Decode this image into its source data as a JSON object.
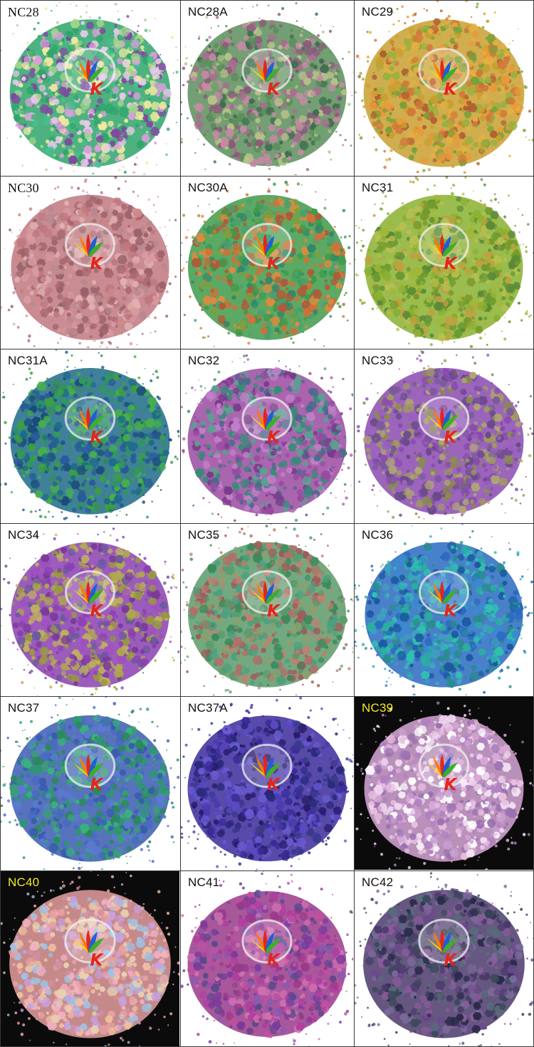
{
  "colors": {
    "grid_line": "#3a3a3a",
    "label_dark_bg": "#f4ea1d",
    "label_default": "#111111"
  },
  "logo": {
    "letter": "K",
    "colors": [
      "#ffd400",
      "#ff7a00",
      "#e3261b",
      "#1f5fd1",
      "#3fae2a"
    ]
  },
  "samples": [
    {
      "code": "NC28",
      "bg": "light",
      "palette": [
        "#2ea56a",
        "#d7a0d8",
        "#46c08a",
        "#e6c8e8",
        "#a5d48a",
        "#7f4aa0",
        "#f0e8a0"
      ]
    },
    {
      "code": "NC28A",
      "bg": "light",
      "palette": [
        "#5c8d5c",
        "#a86d8f",
        "#6fa36a",
        "#8a5a7a",
        "#c48aa4",
        "#3f6f4f",
        "#b8c28a"
      ]
    },
    {
      "code": "NC29",
      "bg": "light",
      "palette": [
        "#c8a030",
        "#d2783a",
        "#7aa03a",
        "#e6b040",
        "#b06030",
        "#9ab040",
        "#e89a3a"
      ]
    },
    {
      "code": "NC30",
      "bg": "light",
      "palette": [
        "#c07880",
        "#d89aa0",
        "#a86870",
        "#e0b0b0",
        "#b88890",
        "#cc8a8a",
        "#9a6068"
      ]
    },
    {
      "code": "NC30A",
      "bg": "light",
      "palette": [
        "#3f9a4a",
        "#d0703a",
        "#2f8a6a",
        "#e08a40",
        "#7aa040",
        "#b05a3a",
        "#4aa070"
      ]
    },
    {
      "code": "NC31",
      "bg": "light",
      "palette": [
        "#8ab030",
        "#6a9a30",
        "#a0b83a",
        "#c0a040",
        "#5a8a3a",
        "#b8c050",
        "#7a9a2a"
      ]
    },
    {
      "code": "NC31A",
      "bg": "light",
      "palette": [
        "#1f6a8a",
        "#2f9a5a",
        "#3aa040",
        "#2a5a9a",
        "#45b04a",
        "#1a4a7a",
        "#3a8a6a"
      ]
    },
    {
      "code": "NC32",
      "bg": "light",
      "palette": [
        "#9a4aa0",
        "#3a8a7a",
        "#b060b0",
        "#5aa090",
        "#7a3a8a",
        "#c080c8",
        "#4a6a8a"
      ]
    },
    {
      "code": "NC33",
      "bg": "light",
      "palette": [
        "#8a4ab0",
        "#8a8a50",
        "#9a60c0",
        "#a09a60",
        "#7a5a9a",
        "#b0a870",
        "#6a4a8a"
      ]
    },
    {
      "code": "NC34",
      "bg": "light",
      "palette": [
        "#8a40b0",
        "#9a9a40",
        "#a050c0",
        "#b0a850",
        "#6a5aa0",
        "#c0b060",
        "#7a3a9a"
      ]
    },
    {
      "code": "NC35",
      "bg": "light",
      "palette": [
        "#5a9a6a",
        "#b0706a",
        "#3a8a5a",
        "#c08070",
        "#8aa070",
        "#a05a5a",
        "#4aa080"
      ]
    },
    {
      "code": "NC36",
      "bg": "light",
      "palette": [
        "#2a6ac0",
        "#2ab0a0",
        "#3a8ad0",
        "#30c0b0",
        "#1a5aa0",
        "#40a0c0",
        "#2a8a90"
      ]
    },
    {
      "code": "NC37",
      "bg": "light",
      "palette": [
        "#3a5ab0",
        "#2a9a6a",
        "#3aa070",
        "#4a6ac0",
        "#2a8a5a",
        "#5a7ad0",
        "#3ab080"
      ]
    },
    {
      "code": "NC37A",
      "bg": "light",
      "palette": [
        "#3a2a9a",
        "#4a3ab0",
        "#2a2a7a",
        "#5a4ac0",
        "#3a3a8a",
        "#6a5ad0",
        "#2a1a6a"
      ]
    },
    {
      "code": "NC39",
      "bg": "dark",
      "palette": [
        "#d8a8d8",
        "#f0d8f0",
        "#b080c0",
        "#e8c0e0",
        "#c8a0d0",
        "#ffffff",
        "#9a70b0"
      ]
    },
    {
      "code": "NC40",
      "bg": "dark",
      "palette": [
        "#e8a0a0",
        "#f0c0a0",
        "#c8a0e0",
        "#e8d0b0",
        "#d090a0",
        "#a0c0e0",
        "#f0b0c0"
      ]
    },
    {
      "code": "NC41",
      "bg": "light",
      "palette": [
        "#9a3a8a",
        "#c050a0",
        "#7a3a9a",
        "#d070b0",
        "#5a4a8a",
        "#b040a0",
        "#8a5ab0"
      ]
    },
    {
      "code": "NC42",
      "bg": "light",
      "palette": [
        "#4a3a6a",
        "#6a4a8a",
        "#3a4a5a",
        "#8a5a9a",
        "#5a6a7a",
        "#2a2a4a",
        "#7a6a9a"
      ]
    }
  ]
}
